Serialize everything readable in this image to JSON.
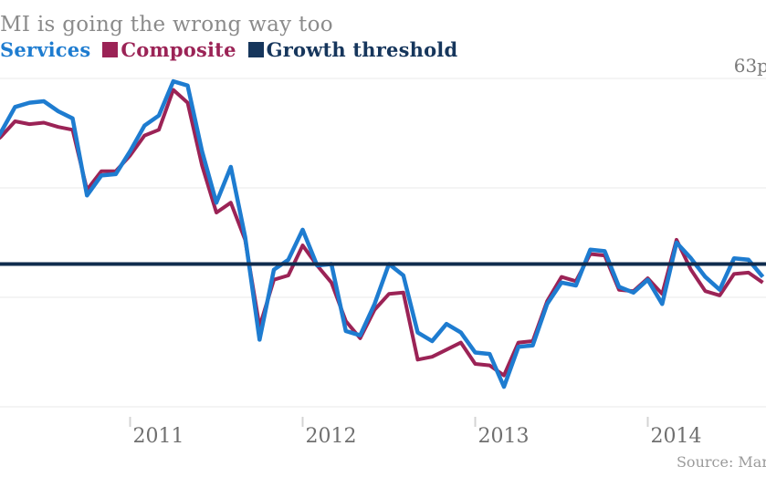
{
  "title": "MI is going the wrong way too",
  "legend": {
    "items": [
      {
        "label": "Services",
        "color": "#1e7cd0",
        "swatch_visible": false
      },
      {
        "label": "Composite",
        "color": "#9b2356",
        "swatch_visible": true
      },
      {
        "label": "Growth threshold",
        "color": "#16365c",
        "swatch_visible": true
      }
    ]
  },
  "y_axis": {
    "max_label": "63p"
  },
  "x_axis": {
    "labels": [
      "2011",
      "2012",
      "2013",
      "2014"
    ]
  },
  "source": {
    "text": "Source: Mar"
  },
  "chart_data": {
    "type": "line",
    "title": "MI is going the wrong way too",
    "x_frequency": "monthly",
    "x_start": "2010-03",
    "x_end": "2014-09",
    "x_tick_labels": [
      "2011",
      "2012",
      "2013",
      "2014"
    ],
    "ylim": [
      40,
      63
    ],
    "y_gridline_values": [
      63,
      55.3,
      47.7,
      40
    ],
    "y_max_visible_label": "63p",
    "grid": "horizontal",
    "legend_position": "top",
    "threshold": {
      "name": "Growth threshold",
      "value": 50,
      "color": "#102c4e"
    },
    "series": [
      {
        "name": "Services",
        "color": "#1e7cd0",
        "values": [
          57.6,
          59.2,
          61.0,
          61.3,
          61.4,
          60.7,
          60.2,
          54.8,
          56.2,
          56.3,
          57.9,
          59.7,
          60.4,
          62.8,
          62.5,
          57.9,
          54.3,
          56.8,
          51.9,
          44.7,
          49.6,
          50.3,
          52.4,
          49.9,
          50.0,
          45.3,
          45.0,
          47.2,
          50.0,
          49.2,
          45.2,
          44.6,
          45.8,
          45.2,
          43.8,
          43.7,
          41.4,
          44.2,
          44.3,
          47.2,
          48.7,
          48.5,
          51.0,
          50.9,
          48.4,
          48.0,
          48.9,
          47.2,
          51.5,
          50.4,
          49.1,
          48.2,
          50.4,
          50.3,
          49.1
        ]
      },
      {
        "name": "Composite",
        "color": "#9b2356",
        "values": [
          58.1,
          58.9,
          60.0,
          59.8,
          59.9,
          59.6,
          59.4,
          55.2,
          56.5,
          56.5,
          57.6,
          59.0,
          59.4,
          62.2,
          61.3,
          56.9,
          53.6,
          54.3,
          51.7,
          45.6,
          48.9,
          49.2,
          51.3,
          49.9,
          48.7,
          46.0,
          44.8,
          46.8,
          47.9,
          48.0,
          43.3,
          43.5,
          44.0,
          44.5,
          43.0,
          42.9,
          42.2,
          44.5,
          44.6,
          47.4,
          49.1,
          48.8,
          50.7,
          50.6,
          48.2,
          48.1,
          49.0,
          47.9,
          51.7,
          49.6,
          48.1,
          47.8,
          49.3,
          49.4,
          48.7
        ]
      }
    ]
  }
}
